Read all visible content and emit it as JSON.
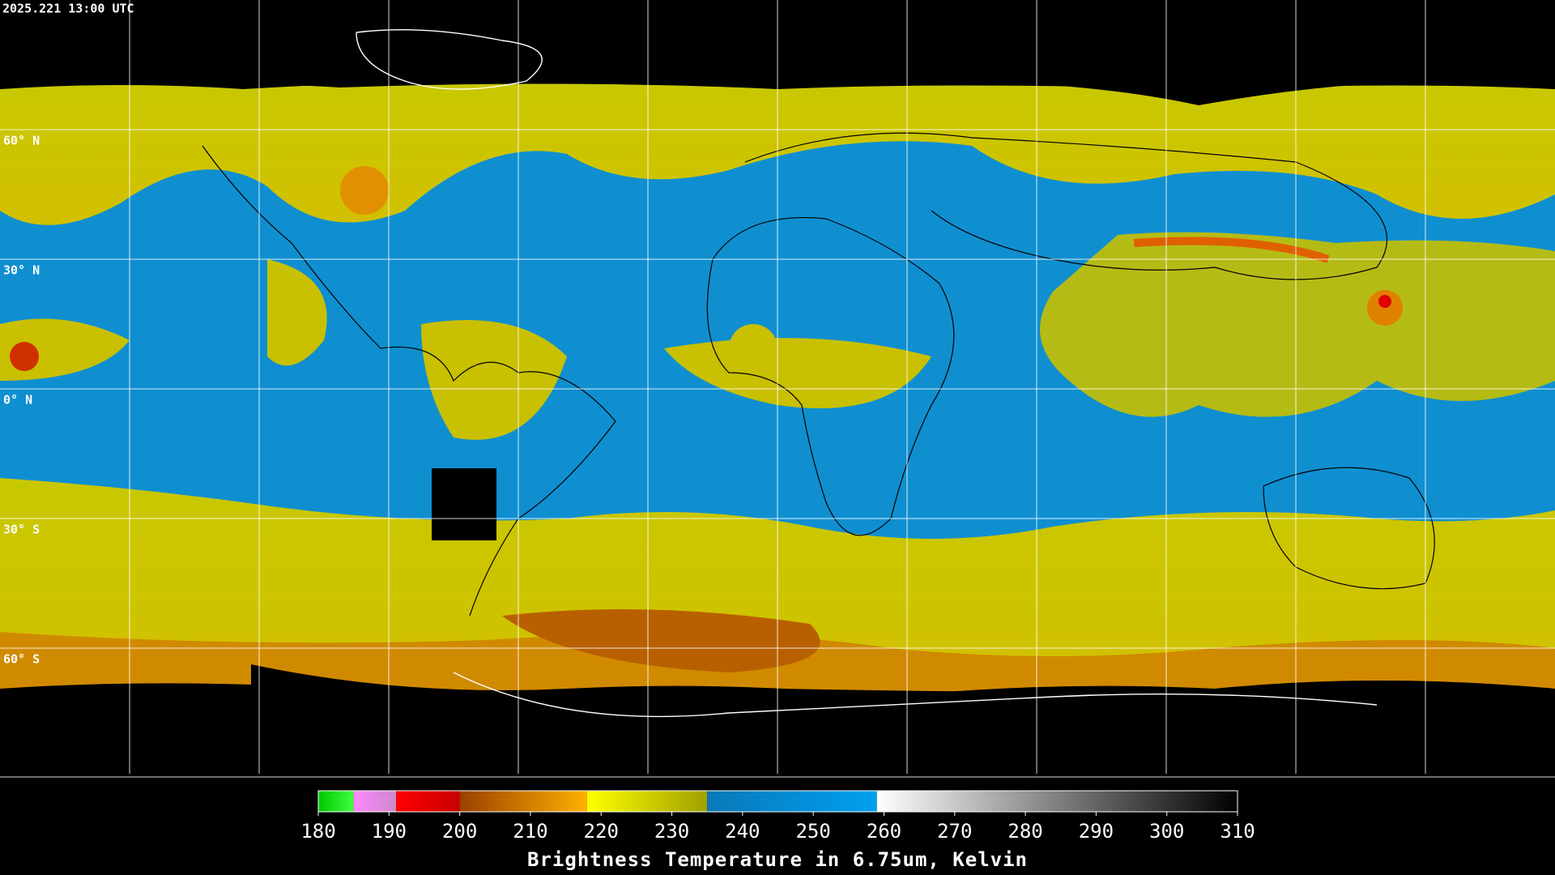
{
  "timestamp": "2025.221 13:00 UTC",
  "latitude_labels": [
    "60° N",
    "30° N",
    "0° N",
    "30° S",
    "60° S"
  ],
  "colorbar": {
    "title": "Brightness Temperature in 6.75um, Kelvin",
    "lim": [
      180,
      310
    ],
    "ticks": [
      180,
      190,
      200,
      210,
      220,
      230,
      240,
      250,
      260,
      270,
      280,
      290,
      300,
      310
    ],
    "segments": [
      {
        "from": 180,
        "to": 185,
        "colors": [
          "#00c800",
          "#40ff40"
        ]
      },
      {
        "from": 185,
        "to": 191,
        "colors": [
          "#ff88ff",
          "#cc88cc"
        ]
      },
      {
        "from": 191,
        "to": 200,
        "colors": [
          "#ff0000",
          "#c80000"
        ]
      },
      {
        "from": 200,
        "to": 218,
        "colors": [
          "#9a4000",
          "#ffb000"
        ]
      },
      {
        "from": 218,
        "to": 235,
        "colors": [
          "#ffff00",
          "#a0a000"
        ]
      },
      {
        "from": 235,
        "to": 259,
        "colors": [
          "#0a78b8",
          "#00a0f0"
        ]
      },
      {
        "from": 259,
        "to": 310,
        "colors": [
          "#ffffff",
          "#000000"
        ]
      }
    ]
  }
}
